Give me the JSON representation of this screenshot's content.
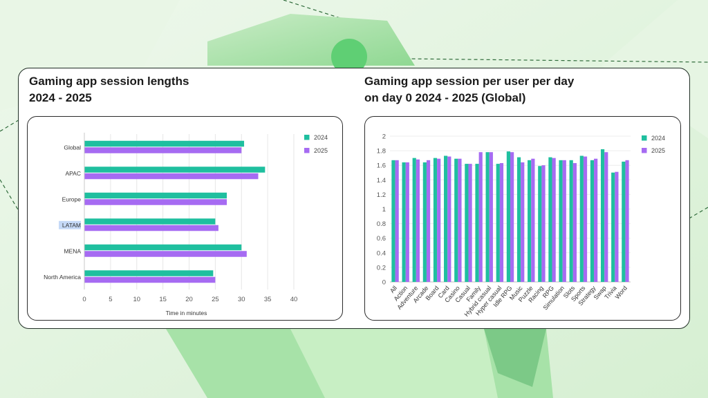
{
  "colors": {
    "series_2024": "#1fbf9f",
    "series_2025": "#a66bf2",
    "accent_green": "#5fcf74"
  },
  "chart_data": [
    {
      "type": "bar",
      "orientation": "horizontal",
      "title": "Gaming app session lengths\n2024 - 2025",
      "categories": [
        "Global",
        "APAC",
        "Europe",
        "LATAM",
        "MENA",
        "North America"
      ],
      "series": [
        {
          "name": "2024",
          "values": [
            30.5,
            34.5,
            27.2,
            25.0,
            30.0,
            24.6
          ]
        },
        {
          "name": "2025",
          "values": [
            30.0,
            33.2,
            27.2,
            25.6,
            31.0,
            25.0
          ]
        }
      ],
      "xlabel": "Time in minutes",
      "ylabel": "",
      "xlim": [
        0,
        40
      ],
      "ticks": [
        "0",
        "5",
        "10",
        "15",
        "20",
        "25",
        "30",
        "35",
        "40"
      ],
      "grid": true,
      "legend": "top-right",
      "highlighted_category": "LATAM"
    },
    {
      "type": "bar",
      "orientation": "vertical",
      "title": "Gaming app session per user per day\non day 0 2024 - 2025 (Global)",
      "categories": [
        "All",
        "Action",
        "Adventure",
        "Arcade",
        "Board",
        "Card",
        "Casino",
        "Casual",
        "Family",
        "Hybrid casual",
        "Hyper casual",
        "Idle RPG",
        "Music",
        "Puzzle",
        "Racing",
        "RPG",
        "Simulation",
        "Slots",
        "Sports",
        "Strategy",
        "Swap",
        "Trivia",
        "Word"
      ],
      "series": [
        {
          "name": "2024",
          "values": [
            1.67,
            1.64,
            1.7,
            1.64,
            1.7,
            1.73,
            1.69,
            1.62,
            1.62,
            1.78,
            1.62,
            1.79,
            1.71,
            1.67,
            1.59,
            1.71,
            1.67,
            1.67,
            1.73,
            1.67,
            1.82,
            1.5,
            1.65
          ]
        },
        {
          "name": "2025",
          "values": [
            1.67,
            1.64,
            1.68,
            1.67,
            1.69,
            1.72,
            1.69,
            1.62,
            1.78,
            1.78,
            1.63,
            1.78,
            1.64,
            1.69,
            1.6,
            1.7,
            1.67,
            1.63,
            1.72,
            1.69,
            1.78,
            1.51,
            1.67
          ]
        }
      ],
      "xlabel": "",
      "ylabel": "",
      "ylim": [
        0,
        2
      ],
      "ticks": [
        "0",
        "0.2",
        "0.4",
        "0.6",
        "0.8",
        "1",
        "1.2",
        "1.4",
        "1.6",
        "1.8",
        "2"
      ],
      "grid": true,
      "legend": "top-right"
    }
  ]
}
